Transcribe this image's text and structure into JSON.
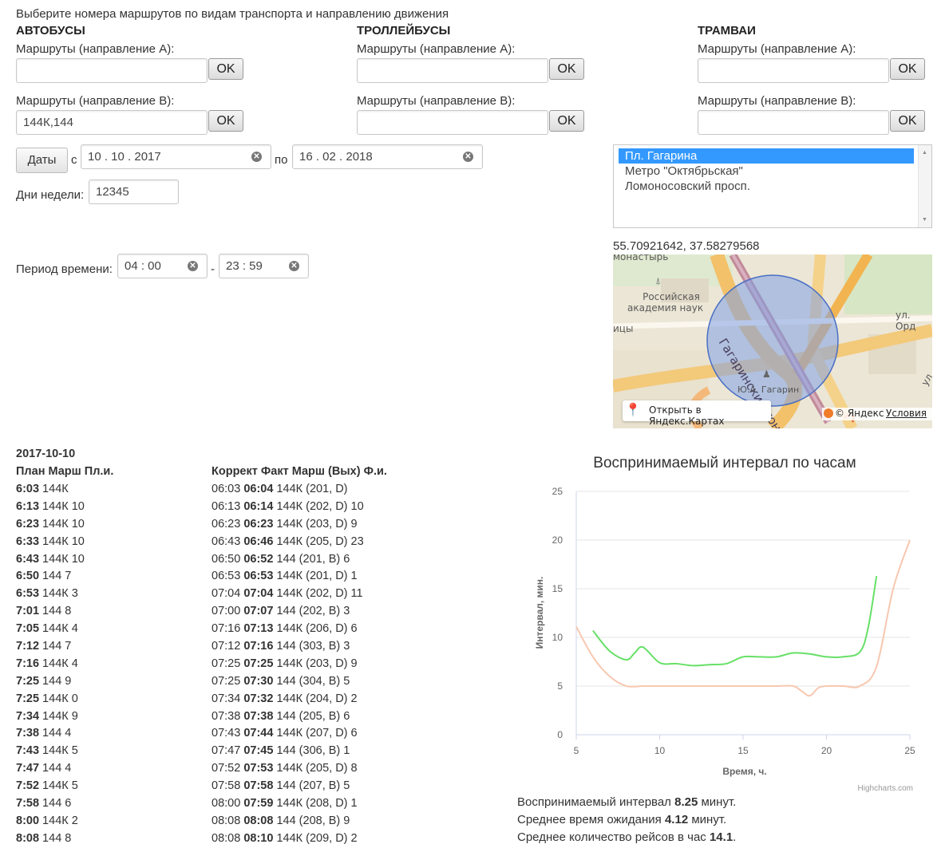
{
  "header": {
    "instruction": "Выберите номера маршрутов по видам транспорта и направлению движения"
  },
  "columns": [
    {
      "title": "АВТОБУСЫ",
      "dirA_label": "Маршруты (направление А):",
      "dirA_value": "",
      "dirB_label": "Маршруты (направление В):",
      "dirB_value": "144К,144",
      "ok_label": "OK"
    },
    {
      "title": "ТРОЛЛЕЙБУСЫ",
      "dirA_label": "Маршруты (направление А):",
      "dirA_value": "",
      "dirB_label": "Маршруты (направление В):",
      "dirB_value": "",
      "ok_label": "OK"
    },
    {
      "title": "ТРАМВАИ",
      "dirA_label": "Маршруты (направление А):",
      "dirA_value": "",
      "dirB_label": "Маршруты (направление В):",
      "dirB_value": "",
      "ok_label": "OK"
    }
  ],
  "dates": {
    "button_label": "Даты",
    "from_label": "с",
    "from_value": "10 . 10 . 2017",
    "to_label": "по",
    "to_value": "16 . 02 . 2018"
  },
  "weekdays": {
    "label": "Дни недели:",
    "value": "12345"
  },
  "period": {
    "label": "Период времени:",
    "from_value": "04 : 00",
    "separator": "-",
    "to_value": "23 : 59"
  },
  "stops": {
    "items": [
      "Пл. Гагарина",
      "Метро \"Октябрьская\"",
      "Ломоносовский просп."
    ],
    "selected_index": 0
  },
  "map": {
    "coords": "55.70921642, 37.58279568",
    "labels": {
      "monastery": "монастырь",
      "academy_1": "Российская",
      "academy_2": "академия наук",
      "tunnel": "Гагаринский тоннель",
      "monument": "Ю.А. Гагарин",
      "street": "ул. Орд",
      "left_edge": "ицы",
      "right_edge": "ул"
    },
    "open_label": "Открыть в Яндекс.Картах",
    "copyright": "© Яндекс",
    "terms": "Условия"
  },
  "schedule": {
    "date": "2017-10-10",
    "plan_header": "План Марш Пл.и.",
    "fact_header": "Коррект Факт Марш (Вых) Ф.и.",
    "plan": [
      {
        "time": "6:03",
        "rest": " 144К"
      },
      {
        "time": "6:13",
        "rest": " 144К 10"
      },
      {
        "time": "6:23",
        "rest": " 144К 10"
      },
      {
        "time": "6:33",
        "rest": " 144К 10"
      },
      {
        "time": "6:43",
        "rest": " 144К 10"
      },
      {
        "time": "6:50",
        "rest": " 144 7"
      },
      {
        "time": "6:53",
        "rest": " 144К 3"
      },
      {
        "time": "7:01",
        "rest": " 144 8"
      },
      {
        "time": "7:05",
        "rest": " 144К 4"
      },
      {
        "time": "7:12",
        "rest": " 144 7"
      },
      {
        "time": "7:16",
        "rest": " 144К 4"
      },
      {
        "time": "7:25",
        "rest": " 144 9"
      },
      {
        "time": "7:25",
        "rest": " 144К 0"
      },
      {
        "time": "7:34",
        "rest": " 144К 9"
      },
      {
        "time": "7:38",
        "rest": " 144 4"
      },
      {
        "time": "7:43",
        "rest": " 144К 5"
      },
      {
        "time": "7:47",
        "rest": " 144 4"
      },
      {
        "time": "7:52",
        "rest": " 144К 5"
      },
      {
        "time": "7:58",
        "rest": " 144 6"
      },
      {
        "time": "8:00",
        "rest": " 144К 2"
      },
      {
        "time": "8:08",
        "rest": " 144 8"
      }
    ],
    "fact": [
      {
        "corr": "06:03 ",
        "time": "06:04",
        "rest": " 144К (201, D)"
      },
      {
        "corr": "06:13 ",
        "time": "06:14",
        "rest": " 144К (202, D) 10"
      },
      {
        "corr": "06:23 ",
        "time": "06:23",
        "rest": " 144К (203, D) 9"
      },
      {
        "corr": "06:43 ",
        "time": "06:46",
        "rest": " 144К (205, D) 23"
      },
      {
        "corr": "06:50 ",
        "time": "06:52",
        "rest": " 144 (201, B) 6"
      },
      {
        "corr": "06:53 ",
        "time": "06:53",
        "rest": " 144К (201, D) 1"
      },
      {
        "corr": "07:04 ",
        "time": "07:04",
        "rest": " 144К (202, D) 11"
      },
      {
        "corr": "07:00 ",
        "time": "07:07",
        "rest": " 144 (202, B) 3"
      },
      {
        "corr": "07:16 ",
        "time": "07:13",
        "rest": " 144К (206, D) 6"
      },
      {
        "corr": "07:12 ",
        "time": "07:16",
        "rest": " 144 (303, B) 3"
      },
      {
        "corr": "07:25 ",
        "time": "07:25",
        "rest": " 144К (203, D) 9"
      },
      {
        "corr": "07:25 ",
        "time": "07:30",
        "rest": " 144 (304, B) 5"
      },
      {
        "corr": "07:34 ",
        "time": "07:32",
        "rest": " 144К (204, D) 2"
      },
      {
        "corr": "07:38 ",
        "time": "07:38",
        "rest": " 144 (205, B) 6"
      },
      {
        "corr": "07:43 ",
        "time": "07:44",
        "rest": " 144К (207, D) 6"
      },
      {
        "corr": "07:47 ",
        "time": "07:45",
        "rest": " 144 (306, B) 1"
      },
      {
        "corr": "07:52 ",
        "time": "07:53",
        "rest": " 144К (205, D) 8"
      },
      {
        "corr": "07:58 ",
        "time": "07:58",
        "rest": " 144 (207, B) 5"
      },
      {
        "corr": "08:00 ",
        "time": "07:59",
        "rest": " 144К (208, D) 1"
      },
      {
        "corr": "08:08 ",
        "time": "08:08",
        "rest": " 144 (208, B) 9"
      },
      {
        "corr": "08:08 ",
        "time": "08:10",
        "rest": " 144К (209, D) 2"
      }
    ]
  },
  "stats": {
    "line1_pre": "Воспринимаемый интервал ",
    "line1_val": "8.25",
    "line1_post": " минут.",
    "line2_pre": "Среднее время ожидания ",
    "line2_val": "4.12",
    "line2_post": " минут.",
    "line3_pre": "Среднее количество рейсов в час ",
    "line3_val": "14.1",
    "line3_post": "."
  },
  "colors": {
    "series_green": "#66e066",
    "series_salmon": "#f8c7b0",
    "selection": "#3399ff"
  },
  "chart_data": {
    "type": "line",
    "title": "Воспринимаемый интервал по часам",
    "xlabel": "Время, ч.",
    "ylabel": "Интервал, мин.",
    "credits": "Highcharts.com",
    "xlim": [
      5,
      25
    ],
    "ylim": [
      0,
      25
    ],
    "xticks": [
      5,
      10,
      15,
      20,
      25
    ],
    "yticks": [
      0,
      5,
      10,
      15,
      20,
      25
    ],
    "grid": true,
    "series": [
      {
        "color": "#66e066",
        "x": [
          6,
          7,
          8,
          8.5,
          9,
          10,
          11,
          12,
          13,
          14,
          15,
          16,
          17,
          18,
          19,
          20,
          21,
          22,
          22.5,
          23
        ],
        "values": [
          10.7,
          8.6,
          7.7,
          8.4,
          9.0,
          7.4,
          7.3,
          7.1,
          7.2,
          7.3,
          8.0,
          8.0,
          8.0,
          8.4,
          8.3,
          8.0,
          8.0,
          8.5,
          11.0,
          16.3
        ]
      },
      {
        "color": "#f8c7b0",
        "x": [
          5,
          6,
          7,
          8,
          9,
          10,
          11,
          12,
          13,
          14,
          15,
          16,
          17,
          18,
          18.5,
          19,
          19.5,
          20,
          21,
          22,
          23,
          24,
          25
        ],
        "values": [
          11.1,
          8.0,
          6.0,
          5.0,
          5.0,
          5.0,
          5.0,
          5.0,
          5.0,
          5.0,
          5.0,
          5.0,
          5.0,
          5.0,
          4.5,
          4.0,
          4.8,
          5.0,
          5.0,
          5.0,
          7.0,
          15.0,
          20.0
        ]
      }
    ]
  }
}
